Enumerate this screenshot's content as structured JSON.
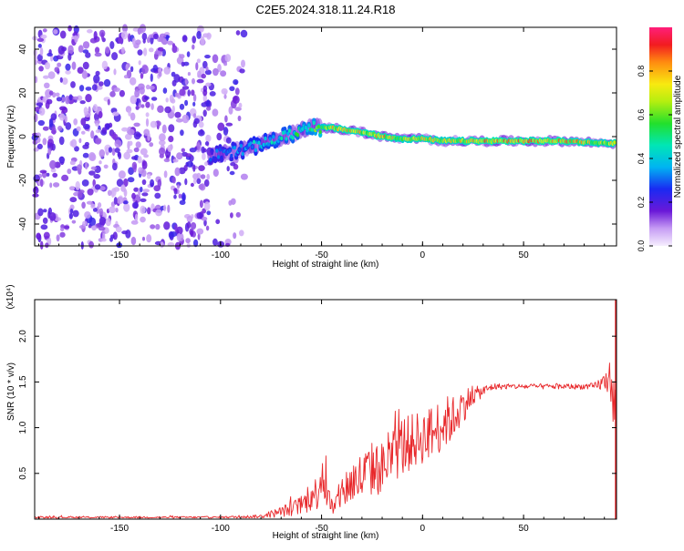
{
  "figure": {
    "title": "C2E5.2024.318.11.24.R18"
  },
  "colors": {
    "axis": "#000000",
    "snr_line": "#e8282b",
    "scatter_violet": "#7b22d4",
    "scatter_light": "#c9a4ef"
  },
  "chart_data": [
    {
      "type": "heatmap",
      "title": "C2E5.2024.318.11.24.R18",
      "xlabel": "Height of straight line (km)",
      "ylabel": "Frequency (Hz)",
      "xlim": [
        -192,
        96
      ],
      "ylim": [
        -50,
        50
      ],
      "x_ticks": [
        -150,
        -100,
        -50,
        0,
        50
      ],
      "y_ticks": [
        -40,
        -20,
        0,
        20,
        40
      ],
      "grid": false,
      "colorbar": {
        "label": "Normalized spectral amplitude",
        "range": [
          0.0,
          1.0
        ],
        "ticks": [
          0.0,
          0.2,
          0.4,
          0.6,
          0.8
        ],
        "colormap": "rainbow (violet-blue-cyan-green-yellow-red-magenta)"
      },
      "regions": [
        {
          "name": "noise",
          "x_range": [
            -192,
            -88
          ],
          "y_range": [
            -50,
            50
          ],
          "amplitude": "low (0.05-0.25)"
        },
        {
          "name": "signal track",
          "x_range": [
            -105,
            95
          ],
          "amplitude": "high (0.4-0.9)"
        }
      ],
      "signal_track": {
        "x": [
          -105,
          -95,
          -85,
          -75,
          -65,
          -55,
          -50,
          -45,
          -30,
          -20,
          -10,
          0,
          10,
          30,
          50,
          70,
          90,
          95
        ],
        "y": [
          -9,
          -7,
          -5,
          -2,
          1,
          5,
          4,
          4,
          2,
          0,
          -1,
          -1,
          -2,
          -2,
          -2,
          -2,
          -3,
          -3
        ],
        "amplitude": [
          0.3,
          0.4,
          0.45,
          0.5,
          0.55,
          0.6,
          0.75,
          0.85,
          0.85,
          0.9,
          0.8,
          0.85,
          0.8,
          0.9,
          0.9,
          0.9,
          0.8,
          0.9
        ]
      }
    },
    {
      "type": "line",
      "title": "",
      "xlabel": "Height of straight line (km)",
      "ylabel": "SNR (10 * v/v)",
      "y_scale_note": "(x10⁴)",
      "xlim": [
        -192,
        96
      ],
      "ylim": [
        0,
        2.4
      ],
      "x_ticks": [
        -150,
        -100,
        -50,
        0,
        50
      ],
      "y_ticks": [
        0.5,
        1.0,
        1.5,
        2.0
      ],
      "grid": false,
      "series": [
        {
          "x": [
            -192,
            -100,
            -80,
            -70,
            -60,
            -52,
            -50,
            -47,
            -44,
            -40,
            -35,
            -30,
            -25,
            -20,
            -15,
            -10,
            -5,
            0,
            5,
            10,
            15,
            20,
            25,
            30,
            35,
            40,
            50,
            60,
            70,
            80,
            85,
            90,
            93,
            95,
            96
          ],
          "y": [
            0.02,
            0.02,
            0.03,
            0.08,
            0.15,
            0.3,
            0.55,
            0.25,
            0.1,
            0.3,
            0.4,
            0.45,
            0.55,
            0.55,
            0.7,
            0.8,
            0.85,
            0.9,
            0.95,
            1.05,
            1.1,
            1.25,
            1.35,
            1.4,
            1.45,
            1.45,
            1.45,
            1.45,
            1.45,
            1.45,
            1.45,
            1.5,
            1.55,
            1.2,
            1.0
          ],
          "spread": [
            0.01,
            0.01,
            0.02,
            0.06,
            0.1,
            0.2,
            0.35,
            0.15,
            0.08,
            0.2,
            0.25,
            0.3,
            0.3,
            0.3,
            0.3,
            0.35,
            0.3,
            0.3,
            0.3,
            0.3,
            0.25,
            0.2,
            0.1,
            0.06,
            0.04,
            0.03,
            0.03,
            0.03,
            0.03,
            0.03,
            0.04,
            0.1,
            0.2,
            0.35,
            0.4
          ]
        }
      ]
    }
  ]
}
